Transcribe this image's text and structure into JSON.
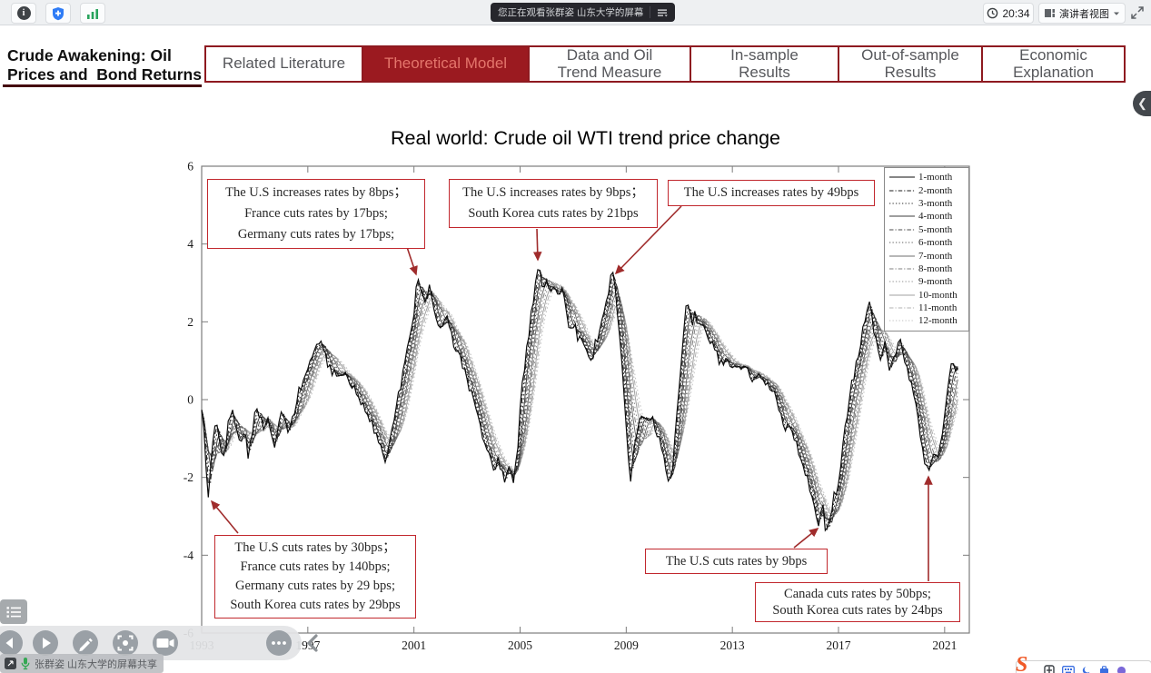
{
  "top_bar": {
    "watching_pill": "您正在观看张群姿 山东大学的屏幕",
    "time": "20:34",
    "view_button": "演讲者视图"
  },
  "header": {
    "deck_title_line1": "Crude Awakening: Oil",
    "deck_title_line2": "Prices and  Bond Returns",
    "tabs": [
      {
        "lines": [
          "Related Literature"
        ],
        "active": false
      },
      {
        "lines": [
          "Theoretical Model"
        ],
        "active": true
      },
      {
        "lines": [
          "Data and Oil",
          "Trend Measure"
        ],
        "active": false
      },
      {
        "lines": [
          "In-sample",
          "Results"
        ],
        "active": false
      },
      {
        "lines": [
          "Out-of-sample",
          "Results"
        ],
        "active": false
      },
      {
        "lines": [
          "Economic",
          "Explanation"
        ],
        "active": false
      }
    ]
  },
  "annotations": [
    {
      "lines": [
        "The U.S increases rates by 8bps；",
        "France cuts rates by 17bps;",
        "Germany cuts rates by 17bps;"
      ]
    },
    {
      "lines": [
        "The U.S increases rates by 9bps；",
        "South Korea cuts rates by 21bps"
      ]
    },
    {
      "lines": [
        "The U.S increases rates by 49bps"
      ]
    },
    {
      "lines": [
        "The U.S cuts rates by 30bps；",
        "France cuts rates by 140bps;",
        "Germany cuts rates by 29 bps;",
        "South Korea cuts rates by 29bps"
      ]
    },
    {
      "lines": [
        "The U.S cuts rates by 9bps"
      ]
    },
    {
      "lines": [
        "Canada cuts rates by 50bps;",
        "South Korea cuts rates by 24bps"
      ]
    }
  ],
  "caption": {
    "text": "张群姿 山东大学的屏幕共享"
  },
  "colors": {
    "tab_red": "#9b1a20",
    "annotation_red": "#c1272d",
    "arrow_red": "#a02c2c",
    "mic_green": "#34a853"
  },
  "chart_data": {
    "type": "line",
    "title": "Real world: Crude oil WTI trend price change",
    "xlabel": "",
    "ylabel": "",
    "xlim": [
      1993,
      2022
    ],
    "ylim": [
      -6,
      6
    ],
    "grid": false,
    "legend_position": "top-right",
    "x_ticks": [
      1993,
      1997,
      2001,
      2005,
      2009,
      2013,
      2017,
      2021
    ],
    "y_ticks": [
      -6,
      -4,
      -2,
      0,
      2,
      4,
      6
    ],
    "series_labels": [
      "1-month",
      "2-month",
      "3-month",
      "4-month",
      "5-month",
      "6-month",
      "7-month",
      "8-month",
      "9-month",
      "10-month",
      "11-month",
      "12-month"
    ],
    "series_note": "k-month series rendered as trailing k-month moving averages of the base monthly trend series",
    "base_keypoints": [
      [
        1993.0,
        -0.2
      ],
      [
        1993.1,
        -1.0
      ],
      [
        1993.25,
        -2.6
      ],
      [
        1993.4,
        -1.1
      ],
      [
        1993.55,
        -0.5
      ],
      [
        1993.7,
        -1.2
      ],
      [
        1993.85,
        -1.5
      ],
      [
        1994.0,
        -0.6
      ],
      [
        1994.15,
        -0.2
      ],
      [
        1994.3,
        -0.7
      ],
      [
        1994.45,
        -1.1
      ],
      [
        1994.6,
        -0.8
      ],
      [
        1994.75,
        -1.4
      ],
      [
        1994.9,
        -0.9
      ],
      [
        1995.05,
        -0.15
      ],
      [
        1995.2,
        -0.4
      ],
      [
        1995.35,
        -0.8
      ],
      [
        1995.5,
        -0.55
      ],
      [
        1995.65,
        -1.0
      ],
      [
        1995.8,
        -1.15
      ],
      [
        1995.95,
        -0.5
      ],
      [
        1996.1,
        -0.35
      ],
      [
        1996.25,
        -0.75
      ],
      [
        1996.4,
        -0.55
      ],
      [
        1996.55,
        -0.1
      ],
      [
        1996.7,
        0.3
      ],
      [
        1996.85,
        0.55
      ],
      [
        1997.0,
        0.9
      ],
      [
        1997.15,
        1.2
      ],
      [
        1997.3,
        1.45
      ],
      [
        1997.45,
        1.6
      ],
      [
        1997.6,
        1.25
      ],
      [
        1997.75,
        0.95
      ],
      [
        1997.9,
        0.75
      ],
      [
        1998.05,
        0.6
      ],
      [
        1998.2,
        0.7
      ],
      [
        1998.35,
        0.75
      ],
      [
        1998.5,
        0.45
      ],
      [
        1998.65,
        0.35
      ],
      [
        1998.8,
        0.2
      ],
      [
        1999.0,
        0.0
      ],
      [
        1999.2,
        -0.3
      ],
      [
        1999.4,
        -0.55
      ],
      [
        1999.6,
        -0.9
      ],
      [
        1999.8,
        -1.3
      ],
      [
        1999.95,
        -1.55
      ],
      [
        2000.1,
        -1.0
      ],
      [
        2000.25,
        -0.6
      ],
      [
        2000.4,
        0.0
      ],
      [
        2000.55,
        0.6
      ],
      [
        2000.7,
        1.1
      ],
      [
        2000.85,
        1.7
      ],
      [
        2001.0,
        2.3
      ],
      [
        2001.15,
        3.15
      ],
      [
        2001.3,
        2.7
      ],
      [
        2001.45,
        2.55
      ],
      [
        2001.6,
        2.95
      ],
      [
        2001.75,
        2.45
      ],
      [
        2001.9,
        1.9
      ],
      [
        2002.05,
        1.75
      ],
      [
        2002.2,
        2.1
      ],
      [
        2002.35,
        1.9
      ],
      [
        2002.5,
        1.45
      ],
      [
        2002.65,
        1.2
      ],
      [
        2002.8,
        0.95
      ],
      [
        2003.0,
        0.5
      ],
      [
        2003.2,
        0.1
      ],
      [
        2003.4,
        -0.4
      ],
      [
        2003.6,
        -0.9
      ],
      [
        2003.8,
        -1.4
      ],
      [
        2004.0,
        -1.9
      ],
      [
        2004.15,
        -1.5
      ],
      [
        2004.3,
        -1.75
      ],
      [
        2004.45,
        -2.15
      ],
      [
        2004.6,
        -1.8
      ],
      [
        2004.75,
        -2.2
      ],
      [
        2004.9,
        -1.4
      ],
      [
        2005.0,
        -0.3
      ],
      [
        2005.15,
        0.8
      ],
      [
        2005.3,
        1.5
      ],
      [
        2005.45,
        2.4
      ],
      [
        2005.6,
        3.0
      ],
      [
        2005.72,
        3.45
      ],
      [
        2005.85,
        2.8
      ],
      [
        2006.0,
        3.1
      ],
      [
        2006.15,
        2.75
      ],
      [
        2006.3,
        3.05
      ],
      [
        2006.45,
        2.6
      ],
      [
        2006.6,
        2.9
      ],
      [
        2006.75,
        2.3
      ],
      [
        2006.9,
        1.7
      ],
      [
        2007.05,
        1.95
      ],
      [
        2007.2,
        1.45
      ],
      [
        2007.35,
        1.65
      ],
      [
        2007.5,
        1.2
      ],
      [
        2007.65,
        0.95
      ],
      [
        2007.8,
        1.35
      ],
      [
        2007.95,
        1.65
      ],
      [
        2008.1,
        2.1
      ],
      [
        2008.3,
        2.6
      ],
      [
        2008.45,
        3.3
      ],
      [
        2008.6,
        2.9
      ],
      [
        2008.75,
        1.6
      ],
      [
        2008.9,
        0.3
      ],
      [
        2009.05,
        -1.2
      ],
      [
        2009.15,
        -2.1
      ],
      [
        2009.3,
        -1.3
      ],
      [
        2009.45,
        -0.55
      ],
      [
        2009.6,
        -0.35
      ],
      [
        2009.75,
        -0.5
      ],
      [
        2009.9,
        -0.4
      ],
      [
        2010.05,
        -0.65
      ],
      [
        2010.2,
        -0.95
      ],
      [
        2010.35,
        -1.35
      ],
      [
        2010.5,
        -1.85
      ],
      [
        2010.62,
        -2.35
      ],
      [
        2010.75,
        -1.7
      ],
      [
        2010.9,
        -0.6
      ],
      [
        2011.05,
        0.9
      ],
      [
        2011.2,
        2.1
      ],
      [
        2011.33,
        2.55
      ],
      [
        2011.45,
        1.9
      ],
      [
        2011.6,
        2.25
      ],
      [
        2011.75,
        1.85
      ],
      [
        2011.9,
        2.0
      ],
      [
        2012.05,
        1.7
      ],
      [
        2012.2,
        1.45
      ],
      [
        2012.4,
        1.15
      ],
      [
        2012.6,
        0.9
      ],
      [
        2012.8,
        1.05
      ],
      [
        2013.0,
        0.95
      ],
      [
        2013.2,
        0.7
      ],
      [
        2013.4,
        0.85
      ],
      [
        2013.6,
        0.75
      ],
      [
        2013.8,
        0.5
      ],
      [
        2014.0,
        0.65
      ],
      [
        2014.2,
        0.45
      ],
      [
        2014.4,
        0.3
      ],
      [
        2014.6,
        0.1
      ],
      [
        2014.8,
        -0.3
      ],
      [
        2015.0,
        -0.8
      ],
      [
        2015.2,
        -0.6
      ],
      [
        2015.4,
        -1.1
      ],
      [
        2015.6,
        -1.5
      ],
      [
        2015.8,
        -2.0
      ],
      [
        2016.0,
        -2.6
      ],
      [
        2016.1,
        -2.8
      ],
      [
        2016.25,
        -3.15
      ],
      [
        2016.4,
        -2.75
      ],
      [
        2016.55,
        -3.5
      ],
      [
        2016.7,
        -3.05
      ],
      [
        2016.85,
        -2.45
      ],
      [
        2017.0,
        -2.2
      ],
      [
        2017.15,
        -1.2
      ],
      [
        2017.3,
        -0.5
      ],
      [
        2017.45,
        0.2
      ],
      [
        2017.6,
        0.7
      ],
      [
        2017.75,
        1.1
      ],
      [
        2017.9,
        1.7
      ],
      [
        2018.05,
        2.2
      ],
      [
        2018.17,
        2.45
      ],
      [
        2018.3,
        1.9
      ],
      [
        2018.45,
        1.35
      ],
      [
        2018.6,
        1.05
      ],
      [
        2018.75,
        1.4
      ],
      [
        2018.9,
        0.8
      ],
      [
        2019.05,
        1.0
      ],
      [
        2019.2,
        1.35
      ],
      [
        2019.35,
        1.5
      ],
      [
        2019.5,
        1.0
      ],
      [
        2019.65,
        0.6
      ],
      [
        2019.8,
        0.2
      ],
      [
        2019.95,
        -0.3
      ],
      [
        2020.1,
        -1.0
      ],
      [
        2020.25,
        -1.6
      ],
      [
        2020.4,
        -1.85
      ],
      [
        2020.55,
        -1.3
      ],
      [
        2020.7,
        -1.6
      ],
      [
        2020.85,
        -1.1
      ],
      [
        2021.0,
        -0.3
      ],
      [
        2021.15,
        0.5
      ],
      [
        2021.3,
        1.05
      ],
      [
        2021.45,
        0.8
      ],
      [
        2021.55,
        0.9
      ]
    ]
  }
}
